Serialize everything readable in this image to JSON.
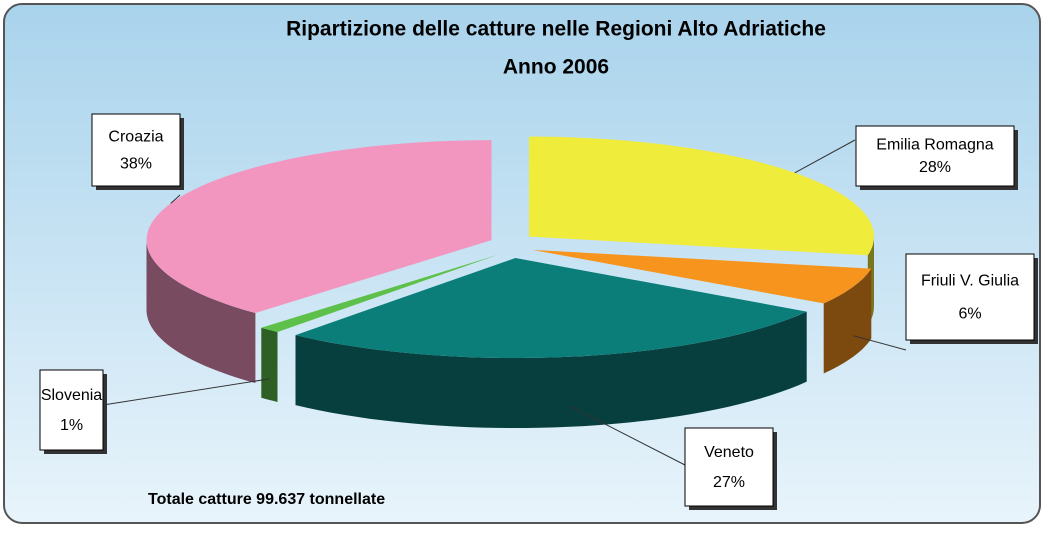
{
  "chart_data": {
    "type": "pie3d",
    "title": "Ripartizione delle catture nelle Regioni Alto Adriatiche",
    "subtitle": "Anno 2006",
    "annotation": "Totale catture 99.637  tonnellate",
    "categories": [
      "Emilia Romagna",
      "Friuli V. Giulia",
      "Veneto",
      "Slovenia",
      "Croazia"
    ],
    "values": [
      28,
      6,
      27,
      1,
      38
    ],
    "value_labels": [
      "28%",
      "6%",
      "27%",
      "1%",
      "38%"
    ],
    "colors": [
      "#f0ec3c",
      "#f7941d",
      "#0b7e7a",
      "#5cc04a",
      "#f296c0"
    ]
  }
}
